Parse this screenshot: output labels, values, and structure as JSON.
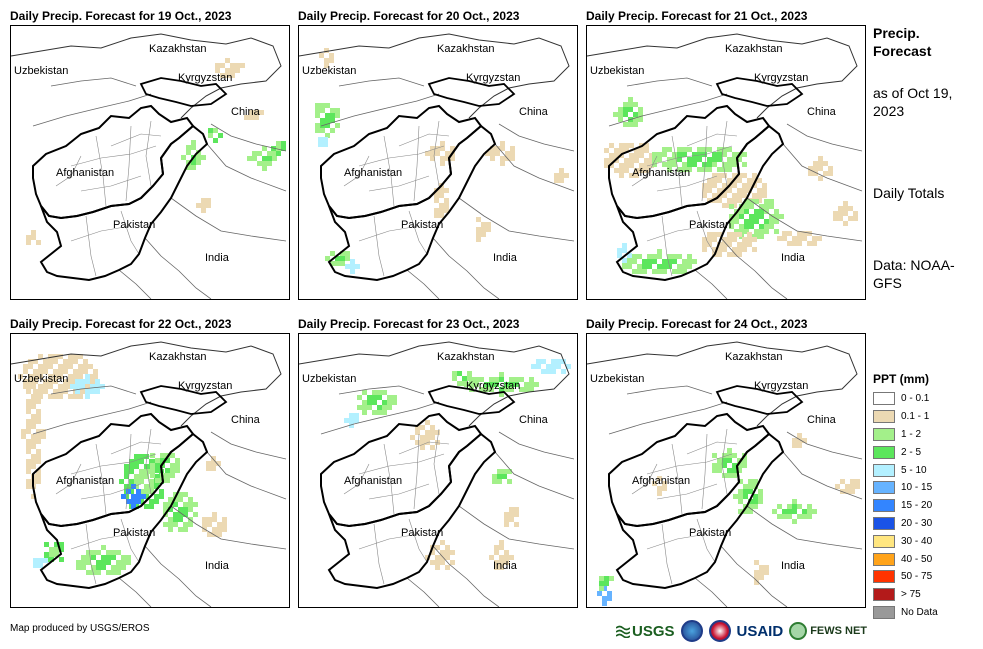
{
  "panels": [
    {
      "title": "Daily Precip. Forecast for 19 Oct., 2023"
    },
    {
      "title": "Daily Precip. Forecast for 20 Oct., 2023"
    },
    {
      "title": "Daily Precip. Forecast for 21 Oct., 2023"
    },
    {
      "title": "Daily Precip. Forecast for 22 Oct., 2023"
    },
    {
      "title": "Daily Precip. Forecast for 23 Oct., 2023"
    },
    {
      "title": "Daily Precip. Forecast for 24 Oct., 2023"
    }
  ],
  "map_labels": {
    "kazakhstan": "Kazakhstan",
    "uzbekistan": "Uzbekistan",
    "kyrgyzstan": "Kyrgyzstan",
    "china": "China",
    "afghanistan": "Afghanistan",
    "pakistan": "Pakistan",
    "india": "India"
  },
  "side": {
    "title": "Precip. Forecast",
    "asof": "as of Oct 19, 2023",
    "daily": "Daily Totals",
    "source": "Data: NOAA-GFS"
  },
  "legend": {
    "title": "PPT (mm)",
    "items": [
      {
        "label": "0 - 0.1",
        "color": "#ffffff"
      },
      {
        "label": "0.1 - 1",
        "color": "#ecd9b3"
      },
      {
        "label": "1 - 2",
        "color": "#a3f08a"
      },
      {
        "label": "2 - 5",
        "color": "#5ce65c"
      },
      {
        "label": "5 - 10",
        "color": "#b3f0ff"
      },
      {
        "label": "10 - 15",
        "color": "#66b3ff"
      },
      {
        "label": "15 - 20",
        "color": "#3385ff"
      },
      {
        "label": "20 - 30",
        "color": "#1a53e6"
      },
      {
        "label": "30 - 40",
        "color": "#ffe680"
      },
      {
        "label": "40 - 50",
        "color": "#ffa31a"
      },
      {
        "label": "50 - 75",
        "color": "#ff3300"
      },
      {
        "label": "> 75",
        "color": "#b31a1a"
      },
      {
        "label": "No Data",
        "color": "#999999"
      }
    ]
  },
  "credit": "Map produced by USGS/EROS",
  "logos": {
    "usgs": "USGS",
    "usaid": "USAID",
    "fews": "FEWS NET"
  }
}
